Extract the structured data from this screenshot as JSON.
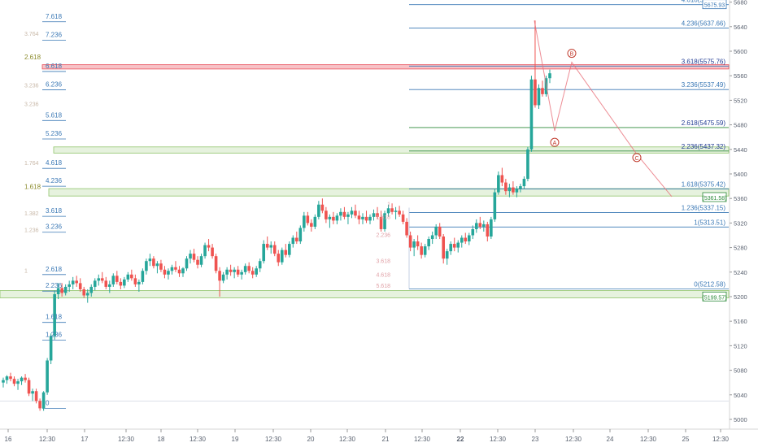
{
  "chart_data": {
    "type": "candlestick",
    "title": "",
    "xlabel": "",
    "ylabel": "",
    "ylim": [
      4990,
      5690
    ],
    "y_ticks": [
      5000,
      5040,
      5080,
      5120,
      5160,
      5200,
      5240,
      5280,
      5320,
      5360,
      5400,
      5440,
      5480,
      5520,
      5560,
      5600,
      5640,
      5680
    ],
    "x_ticks": [
      "16",
      "12:30",
      "17",
      "12:30",
      "18",
      "12:30",
      "19",
      "12:30",
      "20",
      "12:30",
      "21",
      "12:30",
      "22",
      "12:30",
      "23",
      "12:30",
      "24",
      "12:30",
      "25",
      "12:30"
    ],
    "grid": false,
    "candles": [
      [
        5060,
        5068,
        5052,
        5064
      ],
      [
        5064,
        5072,
        5058,
        5070
      ],
      [
        5070,
        5076,
        5062,
        5066
      ],
      [
        5066,
        5070,
        5054,
        5058
      ],
      [
        5058,
        5066,
        5048,
        5062
      ],
      [
        5062,
        5070,
        5056,
        5068
      ],
      [
        5068,
        5074,
        5060,
        5064
      ],
      [
        5064,
        5068,
        5038,
        5042
      ],
      [
        5042,
        5050,
        5030,
        5046
      ],
      [
        5046,
        5050,
        5026,
        5030
      ],
      [
        5030,
        5034,
        5014,
        5018
      ],
      [
        5018,
        5046,
        5014,
        5044
      ],
      [
        5044,
        5100,
        5040,
        5096
      ],
      [
        5096,
        5140,
        5090,
        5136
      ],
      [
        5136,
        5210,
        5130,
        5204
      ],
      [
        5204,
        5222,
        5196,
        5214
      ],
      [
        5214,
        5222,
        5200,
        5206
      ],
      [
        5206,
        5220,
        5202,
        5216
      ],
      [
        5216,
        5226,
        5208,
        5220
      ],
      [
        5220,
        5232,
        5212,
        5226
      ],
      [
        5226,
        5234,
        5216,
        5222
      ],
      [
        5222,
        5230,
        5208,
        5212
      ],
      [
        5212,
        5216,
        5198,
        5202
      ],
      [
        5202,
        5212,
        5190,
        5206
      ],
      [
        5206,
        5220,
        5200,
        5216
      ],
      [
        5216,
        5230,
        5210,
        5226
      ],
      [
        5226,
        5236,
        5218,
        5230
      ],
      [
        5230,
        5240,
        5222,
        5226
      ],
      [
        5226,
        5232,
        5212,
        5216
      ],
      [
        5216,
        5226,
        5206,
        5220
      ],
      [
        5220,
        5238,
        5216,
        5234
      ],
      [
        5234,
        5242,
        5220,
        5224
      ],
      [
        5224,
        5230,
        5212,
        5218
      ],
      [
        5218,
        5232,
        5214,
        5228
      ],
      [
        5228,
        5240,
        5224,
        5236
      ],
      [
        5236,
        5244,
        5226,
        5230
      ],
      [
        5230,
        5236,
        5216,
        5220
      ],
      [
        5220,
        5228,
        5208,
        5224
      ],
      [
        5224,
        5246,
        5220,
        5242
      ],
      [
        5242,
        5262,
        5236,
        5258
      ],
      [
        5258,
        5270,
        5250,
        5262
      ],
      [
        5262,
        5266,
        5246,
        5250
      ],
      [
        5250,
        5258,
        5238,
        5254
      ],
      [
        5254,
        5260,
        5240,
        5244
      ],
      [
        5244,
        5250,
        5230,
        5236
      ],
      [
        5236,
        5246,
        5228,
        5242
      ],
      [
        5242,
        5252,
        5236,
        5248
      ],
      [
        5248,
        5258,
        5240,
        5244
      ],
      [
        5244,
        5250,
        5232,
        5238
      ],
      [
        5238,
        5248,
        5232,
        5246
      ],
      [
        5246,
        5266,
        5242,
        5262
      ],
      [
        5262,
        5276,
        5254,
        5270
      ],
      [
        5270,
        5278,
        5256,
        5260
      ],
      [
        5260,
        5266,
        5246,
        5252
      ],
      [
        5252,
        5270,
        5248,
        5266
      ],
      [
        5266,
        5288,
        5262,
        5284
      ],
      [
        5284,
        5294,
        5274,
        5280
      ],
      [
        5280,
        5286,
        5262,
        5266
      ],
      [
        5266,
        5270,
        5238,
        5242
      ],
      [
        5242,
        5248,
        5200,
        5226
      ],
      [
        5226,
        5240,
        5222,
        5236
      ],
      [
        5236,
        5248,
        5228,
        5244
      ],
      [
        5244,
        5252,
        5234,
        5240
      ],
      [
        5240,
        5248,
        5230,
        5244
      ],
      [
        5244,
        5250,
        5232,
        5236
      ],
      [
        5236,
        5244,
        5228,
        5240
      ],
      [
        5240,
        5254,
        5236,
        5250
      ],
      [
        5250,
        5256,
        5238,
        5242
      ],
      [
        5242,
        5248,
        5230,
        5236
      ],
      [
        5236,
        5250,
        5232,
        5246
      ],
      [
        5246,
        5262,
        5240,
        5258
      ],
      [
        5258,
        5292,
        5254,
        5286
      ],
      [
        5286,
        5298,
        5276,
        5280
      ],
      [
        5280,
        5290,
        5270,
        5284
      ],
      [
        5284,
        5290,
        5266,
        5270
      ],
      [
        5270,
        5276,
        5250,
        5256
      ],
      [
        5256,
        5280,
        5252,
        5276
      ],
      [
        5276,
        5286,
        5264,
        5268
      ],
      [
        5268,
        5290,
        5264,
        5286
      ],
      [
        5286,
        5300,
        5280,
        5296
      ],
      [
        5296,
        5306,
        5286,
        5290
      ],
      [
        5290,
        5316,
        5286,
        5312
      ],
      [
        5312,
        5338,
        5306,
        5332
      ],
      [
        5332,
        5338,
        5316,
        5320
      ],
      [
        5320,
        5326,
        5306,
        5314
      ],
      [
        5314,
        5334,
        5310,
        5330
      ],
      [
        5330,
        5356,
        5326,
        5350
      ],
      [
        5350,
        5360,
        5336,
        5340
      ],
      [
        5340,
        5346,
        5320,
        5326
      ],
      [
        5326,
        5334,
        5312,
        5330
      ],
      [
        5330,
        5338,
        5318,
        5324
      ],
      [
        5324,
        5336,
        5318,
        5332
      ],
      [
        5332,
        5344,
        5324,
        5338
      ],
      [
        5338,
        5346,
        5326,
        5330
      ],
      [
        5330,
        5338,
        5318,
        5334
      ],
      [
        5334,
        5346,
        5328,
        5340
      ],
      [
        5340,
        5350,
        5328,
        5332
      ],
      [
        5332,
        5340,
        5318,
        5326
      ],
      [
        5326,
        5336,
        5318,
        5330
      ],
      [
        5330,
        5340,
        5320,
        5324
      ],
      [
        5324,
        5334,
        5318,
        5330
      ],
      [
        5330,
        5342,
        5324,
        5336
      ],
      [
        5336,
        5346,
        5326,
        5330
      ],
      [
        5330,
        5340,
        5306,
        5310
      ],
      [
        5310,
        5340,
        5306,
        5336
      ],
      [
        5336,
        5350,
        5330,
        5344
      ],
      [
        5344,
        5352,
        5334,
        5338
      ],
      [
        5338,
        5346,
        5326,
        5340
      ],
      [
        5340,
        5348,
        5330,
        5334
      ],
      [
        5334,
        5340,
        5318,
        5322
      ],
      [
        5322,
        5328,
        5296,
        5300
      ],
      [
        5300,
        5306,
        5274,
        5280
      ],
      [
        5280,
        5294,
        5266,
        5290
      ],
      [
        5290,
        5300,
        5276,
        5282
      ],
      [
        5282,
        5288,
        5262,
        5268
      ],
      [
        5268,
        5286,
        5264,
        5282
      ],
      [
        5282,
        5298,
        5276,
        5294
      ],
      [
        5294,
        5306,
        5286,
        5300
      ],
      [
        5300,
        5318,
        5294,
        5314
      ],
      [
        5314,
        5320,
        5294,
        5298
      ],
      [
        5298,
        5302,
        5254,
        5262
      ],
      [
        5262,
        5278,
        5252,
        5274
      ],
      [
        5274,
        5290,
        5268,
        5286
      ],
      [
        5286,
        5296,
        5274,
        5280
      ],
      [
        5280,
        5292,
        5272,
        5288
      ],
      [
        5288,
        5300,
        5280,
        5296
      ],
      [
        5296,
        5304,
        5286,
        5290
      ],
      [
        5290,
        5304,
        5284,
        5300
      ],
      [
        5300,
        5316,
        5294,
        5310
      ],
      [
        5310,
        5326,
        5304,
        5320
      ],
      [
        5320,
        5330,
        5310,
        5314
      ],
      [
        5314,
        5324,
        5306,
        5318
      ],
      [
        5318,
        5322,
        5290,
        5298
      ],
      [
        5298,
        5330,
        5294,
        5326
      ],
      [
        5326,
        5376,
        5322,
        5370
      ],
      [
        5370,
        5404,
        5366,
        5398
      ],
      [
        5398,
        5410,
        5380,
        5386
      ],
      [
        5386,
        5392,
        5366,
        5372
      ],
      [
        5372,
        5384,
        5362,
        5378
      ],
      [
        5378,
        5388,
        5366,
        5370
      ],
      [
        5370,
        5380,
        5362,
        5376
      ],
      [
        5376,
        5384,
        5370,
        5380
      ],
      [
        5380,
        5396,
        5376,
        5392
      ],
      [
        5392,
        5444,
        5388,
        5440
      ],
      [
        5440,
        5560,
        5436,
        5554
      ],
      [
        5554,
        5650,
        5508,
        5512
      ],
      [
        5512,
        5546,
        5506,
        5540
      ],
      [
        5540,
        5552,
        5526,
        5530
      ],
      [
        5530,
        5560,
        5526,
        5556
      ],
      [
        5556,
        5570,
        5548,
        5564
      ]
    ],
    "fib_right": {
      "anchor_label": "0(5212.58)",
      "levels": [
        "4.618(5675.93)",
        "4.236(5637.66)",
        "3.618(5575.76)",
        "3.236(5537.49)",
        "2.618(5475.59)",
        "2.236(5437.32)",
        "1.618(5375.42)",
        "1.236(5337.15)",
        "1(5313.51)",
        "0(5212.58)"
      ],
      "values": [
        5675.93,
        5637.66,
        5575.76,
        5537.49,
        5475.59,
        5437.32,
        5375.42,
        5337.15,
        5313.51,
        5212.58
      ]
    },
    "fib_left": {
      "labels": [
        "7.618",
        "7.236",
        "6.618",
        "6.236",
        "5.618",
        "5.236",
        "4.618",
        "4.236",
        "3.618",
        "3.236",
        "2.618",
        "2.236",
        "1.618",
        "1.236",
        "0"
      ],
      "values": [
        5648,
        5618,
        5567,
        5537,
        5487,
        5457,
        5409,
        5380,
        5331,
        5305,
        5236,
        5209,
        5158,
        5129,
        5018
      ]
    },
    "fib_left_faint": {
      "labels": [
        "3.764",
        "3.236",
        "3.236",
        "1.764",
        "1.382",
        "1.236",
        "1"
      ],
      "values": [
        5620,
        5536,
        5505,
        5409,
        5327,
        5300,
        5234
      ]
    },
    "fib_left_olive": {
      "labels": [
        "2.618",
        "1.618"
      ],
      "values": [
        5584,
        5373
      ]
    },
    "fib_mid_faint": {
      "labels": [
        "1",
        "1.618",
        "2.236",
        "3.618",
        "4.618",
        "5.618"
      ],
      "values": [
        5345,
        5324,
        5295,
        5252,
        5230,
        5212
      ]
    },
    "price_tags": [
      {
        "label": "5675.93",
        "value": 5675.93,
        "color": "#3a78b5"
      },
      {
        "label": "(5361.58)",
        "value": 5361.58,
        "color": "#2d8a3a"
      },
      {
        "label": "(5199.57)",
        "value": 5199.57,
        "color": "#2d8a3a"
      }
    ],
    "zones": [
      {
        "name": "green-band-upper",
        "from": 5434,
        "to": 5444,
        "color": "#8fc46a"
      },
      {
        "name": "green-band-mid",
        "from": 5364,
        "to": 5376,
        "color": "#8fc46a"
      },
      {
        "name": "green-band-lower",
        "from": 5198,
        "to": 5210,
        "color": "#8fc46a"
      },
      {
        "name": "red-band",
        "from": 5571,
        "to": 5578,
        "color": "#e8505b"
      }
    ],
    "wave_labels": [
      "A",
      "B",
      "C"
    ],
    "colors": {
      "up": "#26a69a",
      "down": "#ef5350",
      "fib_line": "#3a78b5",
      "fib_label": "#3a78b5",
      "target": "#1f3a93",
      "wave": "#e8707a"
    }
  }
}
